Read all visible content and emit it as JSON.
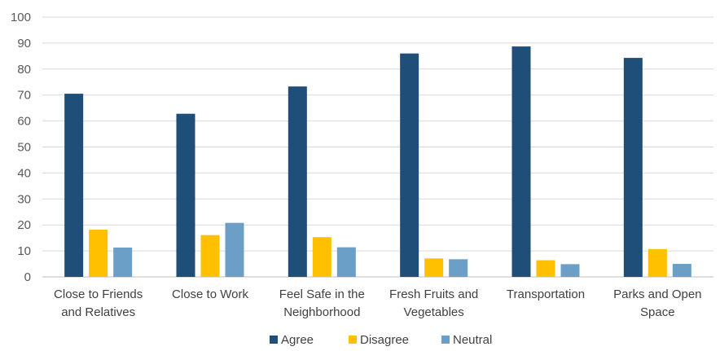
{
  "chart_data": {
    "type": "bar",
    "categories": [
      [
        "Close to Friends",
        "and Relatives"
      ],
      [
        "Close to Work"
      ],
      [
        "Feel Safe in the",
        "Neighborhood"
      ],
      [
        "Fresh Fruits and",
        "Vegetables"
      ],
      [
        "Transportation"
      ],
      [
        "Parks and Open",
        "Space"
      ]
    ],
    "series": [
      {
        "name": "Agree",
        "color": "#1f4e79",
        "values": [
          70.5,
          62.8,
          73.3,
          86.0,
          88.7,
          84.3
        ]
      },
      {
        "name": "Disagree",
        "color": "#ffc000",
        "values": [
          18.2,
          16.1,
          15.3,
          7.1,
          6.4,
          10.7
        ]
      },
      {
        "name": "Neutral",
        "color": "#6b9fc8",
        "values": [
          11.3,
          20.8,
          11.4,
          6.8,
          4.9,
          5.0
        ]
      }
    ],
    "title": "",
    "xlabel": "",
    "ylabel": "",
    "ylim": [
      0,
      100
    ],
    "yticks": [
      0,
      10,
      20,
      30,
      40,
      50,
      60,
      70,
      80,
      90,
      100
    ],
    "grid": true,
    "legend_position": "bottom"
  }
}
